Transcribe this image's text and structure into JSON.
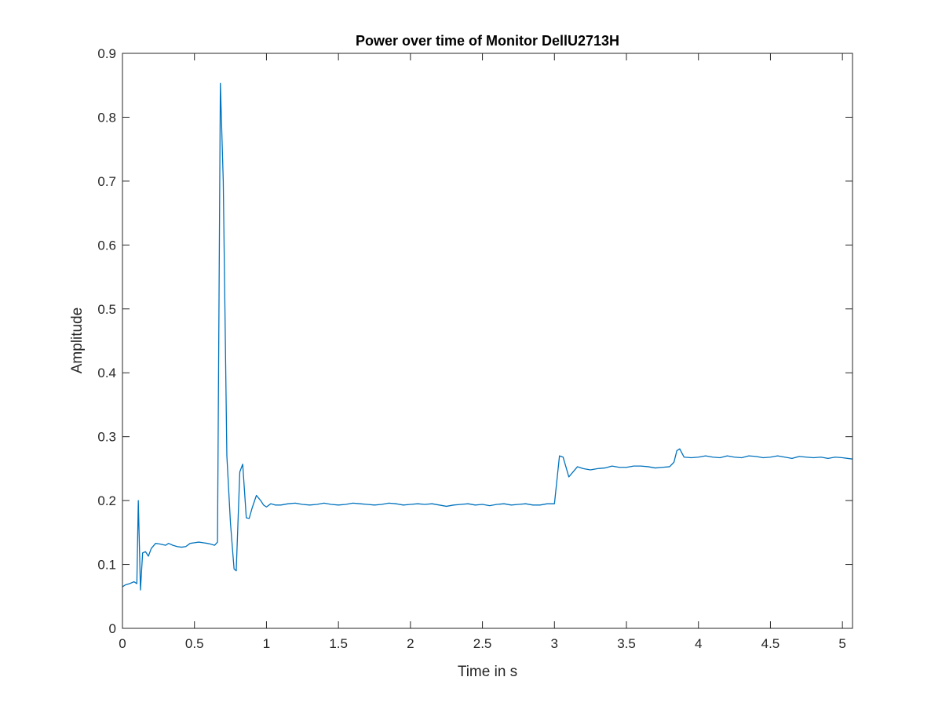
{
  "chart_data": {
    "type": "line",
    "title": "Power over time of Monitor DellU2713H",
    "xlabel": "Time in s",
    "ylabel": "Amplitude",
    "xlim": [
      0,
      5.07
    ],
    "ylim": [
      0,
      0.9
    ],
    "xticks": [
      0,
      0.5,
      1,
      1.5,
      2,
      2.5,
      3,
      3.5,
      4,
      4.5,
      5
    ],
    "xtick_labels": [
      "0",
      "0.5",
      "1",
      "1.5",
      "2",
      "2.5",
      "3",
      "3.5",
      "4",
      "4.5",
      "5"
    ],
    "yticks": [
      0,
      0.1,
      0.2,
      0.3,
      0.4,
      0.5,
      0.6,
      0.7,
      0.8,
      0.9
    ],
    "ytick_labels": [
      "0",
      "0.1",
      "0.2",
      "0.3",
      "0.4",
      "0.5",
      "0.6",
      "0.7",
      "0.8",
      "0.9"
    ],
    "grid": false,
    "box": true,
    "colors": {
      "line": "#0072BD",
      "axes": "#262626",
      "background": "#ffffff"
    },
    "series": [
      {
        "x": [
          0,
          0.02,
          0.05,
          0.08,
          0.1,
          0.11,
          0.125,
          0.14,
          0.16,
          0.18,
          0.2,
          0.23,
          0.26,
          0.3,
          0.32,
          0.35,
          0.38,
          0.41,
          0.44,
          0.47,
          0.5,
          0.53,
          0.56,
          0.59,
          0.61,
          0.64,
          0.66,
          0.68,
          0.7,
          0.725,
          0.75,
          0.775,
          0.79,
          0.815,
          0.835,
          0.86,
          0.88,
          0.9,
          0.93,
          0.96,
          0.98,
          1.0,
          1.03,
          1.06,
          1.1,
          1.15,
          1.2,
          1.25,
          1.3,
          1.35,
          1.4,
          1.45,
          1.5,
          1.55,
          1.6,
          1.65,
          1.7,
          1.75,
          1.8,
          1.85,
          1.9,
          1.95,
          2.0,
          2.05,
          2.1,
          2.15,
          2.2,
          2.25,
          2.3,
          2.35,
          2.4,
          2.45,
          2.5,
          2.55,
          2.6,
          2.65,
          2.7,
          2.75,
          2.8,
          2.85,
          2.9,
          2.95,
          3.0,
          3.035,
          3.06,
          3.1,
          3.13,
          3.16,
          3.2,
          3.25,
          3.3,
          3.35,
          3.4,
          3.45,
          3.5,
          3.55,
          3.6,
          3.65,
          3.7,
          3.75,
          3.8,
          3.83,
          3.85,
          3.87,
          3.9,
          3.95,
          4.0,
          4.05,
          4.1,
          4.15,
          4.2,
          4.25,
          4.3,
          4.35,
          4.4,
          4.45,
          4.5,
          4.55,
          4.6,
          4.65,
          4.7,
          4.75,
          4.8,
          4.85,
          4.9,
          4.95,
          5.0,
          5.07
        ],
        "values": [
          0.065,
          0.068,
          0.07,
          0.073,
          0.07,
          0.2,
          0.06,
          0.118,
          0.12,
          0.113,
          0.125,
          0.133,
          0.132,
          0.13,
          0.133,
          0.13,
          0.128,
          0.127,
          0.128,
          0.133,
          0.134,
          0.135,
          0.134,
          0.133,
          0.132,
          0.13,
          0.135,
          0.853,
          0.7,
          0.27,
          0.165,
          0.093,
          0.09,
          0.245,
          0.257,
          0.173,
          0.172,
          0.188,
          0.208,
          0.2,
          0.193,
          0.19,
          0.195,
          0.193,
          0.193,
          0.195,
          0.196,
          0.194,
          0.193,
          0.194,
          0.196,
          0.194,
          0.193,
          0.194,
          0.196,
          0.195,
          0.194,
          0.193,
          0.194,
          0.196,
          0.195,
          0.193,
          0.194,
          0.195,
          0.194,
          0.195,
          0.193,
          0.191,
          0.193,
          0.194,
          0.195,
          0.193,
          0.194,
          0.192,
          0.194,
          0.195,
          0.193,
          0.194,
          0.195,
          0.193,
          0.193,
          0.195,
          0.195,
          0.27,
          0.268,
          0.237,
          0.245,
          0.253,
          0.25,
          0.248,
          0.25,
          0.251,
          0.254,
          0.252,
          0.252,
          0.254,
          0.254,
          0.253,
          0.251,
          0.252,
          0.253,
          0.26,
          0.278,
          0.281,
          0.268,
          0.267,
          0.268,
          0.27,
          0.268,
          0.267,
          0.27,
          0.268,
          0.267,
          0.27,
          0.269,
          0.267,
          0.268,
          0.27,
          0.268,
          0.266,
          0.269,
          0.268,
          0.267,
          0.268,
          0.266,
          0.268,
          0.267,
          0.265
        ]
      }
    ]
  }
}
